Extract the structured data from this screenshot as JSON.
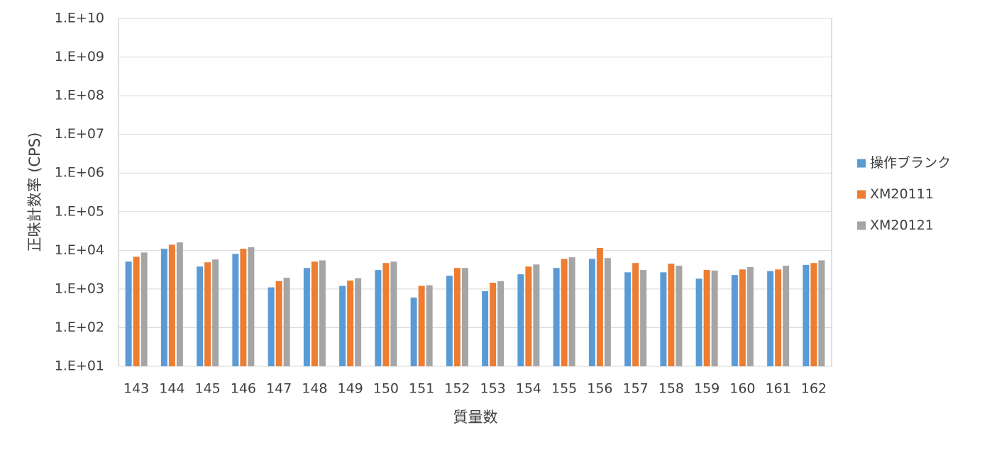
{
  "chart_data": {
    "type": "bar",
    "log": true,
    "grid": true,
    "legend": "right",
    "x_label": "質量数",
    "y_label": "正味計数率 (CPS)",
    "categories": [
      "143",
      "144",
      "145",
      "146",
      "147",
      "148",
      "149",
      "150",
      "151",
      "152",
      "153",
      "154",
      "155",
      "156",
      "157",
      "158",
      "159",
      "160",
      "161",
      "162"
    ],
    "series": [
      {
        "name": "操作ブランク",
        "color": "#5b9bd5",
        "values": [
          5100,
          11000,
          3800,
          8100,
          1100,
          3500,
          1200,
          3100,
          600,
          2200,
          880,
          2400,
          3500,
          6000,
          2700,
          2700,
          1850,
          2300,
          2900,
          4200
        ]
      },
      {
        "name": "XM20111",
        "color": "#ed7d31",
        "values": [
          6800,
          14000,
          4900,
          11000,
          1600,
          5100,
          1650,
          4700,
          1200,
          3500,
          1450,
          3800,
          6000,
          11500,
          4700,
          4500,
          3100,
          3200,
          3200,
          4700
        ]
      },
      {
        "name": "XM20121",
        "color": "#a5a5a5",
        "values": [
          8800,
          16000,
          5800,
          12000,
          1950,
          5500,
          1900,
          5100,
          1250,
          3500,
          1600,
          4300,
          6600,
          6300,
          3100,
          4000,
          3000,
          3700,
          4000,
          5500
        ]
      }
    ],
    "ylim": [
      10,
      10000000000
    ],
    "yticks": [
      {
        "value": 10,
        "label": "1.E+01"
      },
      {
        "value": 100,
        "label": "1.E+02"
      },
      {
        "value": 1000,
        "label": "1.E+03"
      },
      {
        "value": 10000,
        "label": "1.E+04"
      },
      {
        "value": 100000,
        "label": "1.E+05"
      },
      {
        "value": 1000000,
        "label": "1.E+06"
      },
      {
        "value": 10000000,
        "label": "1.E+07"
      },
      {
        "value": 100000000,
        "label": "1.E+08"
      },
      {
        "value": 1000000000,
        "label": "1.E+09"
      },
      {
        "value": 10000000000,
        "label": "1.E+10"
      }
    ]
  }
}
